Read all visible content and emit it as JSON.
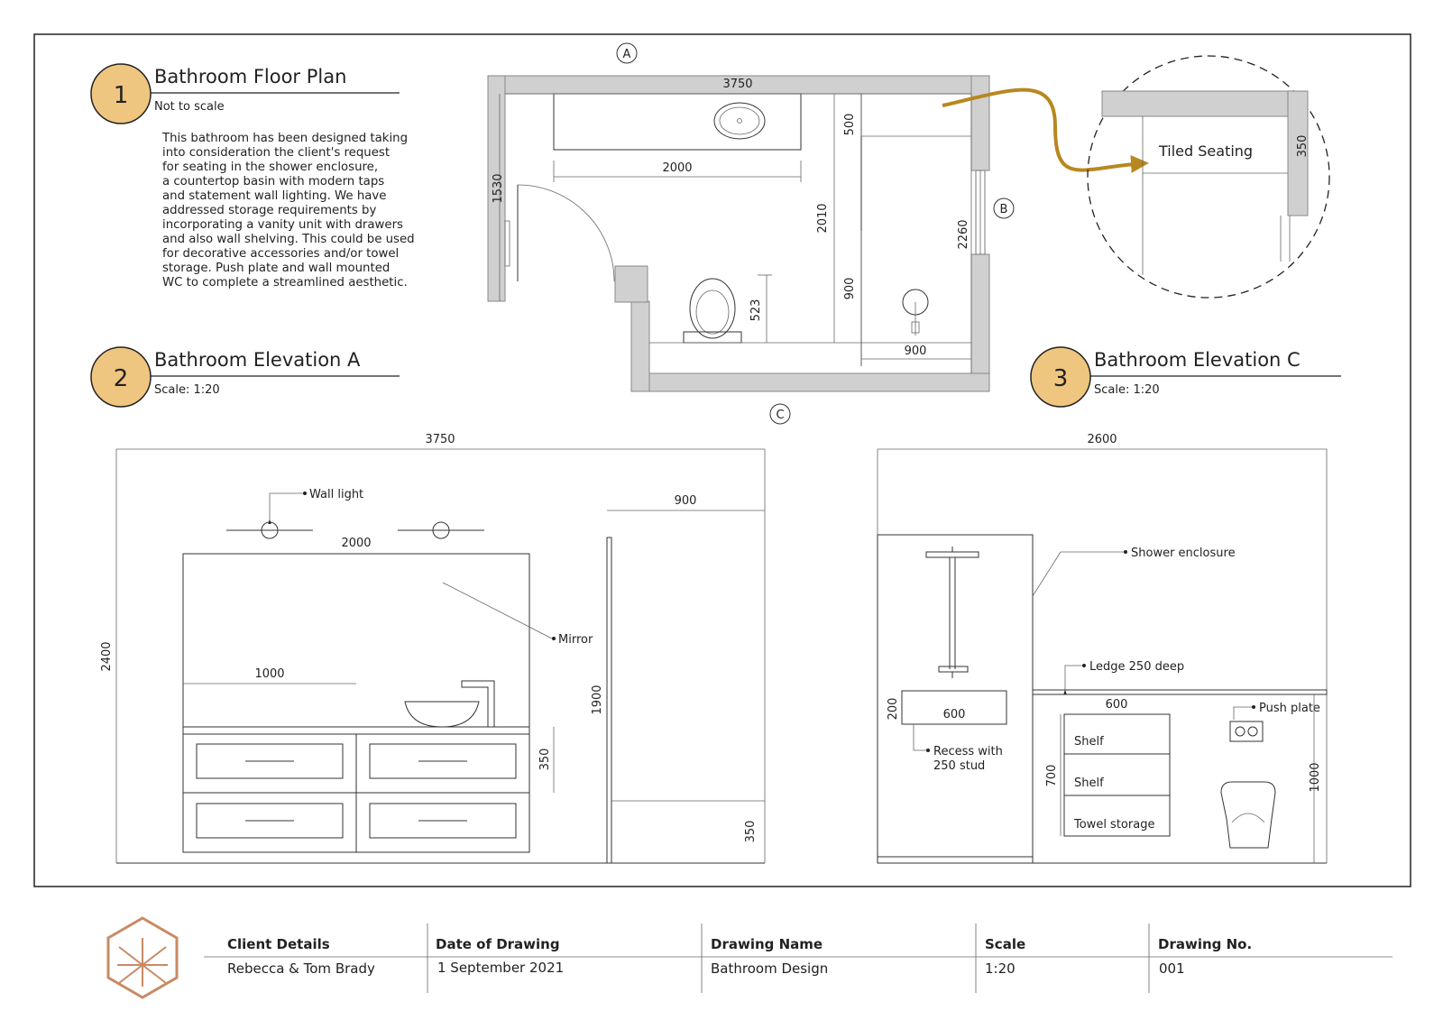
{
  "floor_plan": {
    "badge": "1",
    "title": "Bathroom Floor Plan",
    "scale_note": "Not to scale",
    "description": [
      "This bathroom has been designed taking",
      "into consideration the client's request",
      "for seating in the shower enclosure,",
      "a countertop basin with modern taps",
      "and statement wall lighting. We have",
      "addressed storage requirements by",
      "incorporating a vanity unit with drawers",
      "and also wall shelving. This could be used",
      "for decorative accessories and/or towel",
      "storage. Push plate and wall mounted",
      "WC to complete a streamlined aesthetic."
    ],
    "markers": {
      "a": "A",
      "b": "B",
      "c": "C"
    },
    "dims": {
      "width": "3750",
      "left_wall": "1530",
      "vanity": "2000",
      "ledge_depth": "500",
      "shower_upper": "2010",
      "wall_b": "2260",
      "shower_lower": "900",
      "wc": "523",
      "shower_width": "900"
    }
  },
  "detail": {
    "label": "Tiled Seating",
    "dim": "350"
  },
  "elev_a": {
    "badge": "2",
    "title": "Bathroom Elevation A",
    "scale": "Scale: 1:20",
    "dims": {
      "width": "3750",
      "height": "2400",
      "mirror": "2000",
      "shower": "900",
      "vanity": "1000",
      "drawer": "350",
      "screen": "1900",
      "base": "350"
    },
    "labels": {
      "wall_light": "Wall light",
      "mirror": "Mirror"
    }
  },
  "elev_c": {
    "badge": "3",
    "title": "Bathroom Elevation C",
    "scale": "Scale: 1:20",
    "dims": {
      "width": "2600",
      "recess_w": "600",
      "recess_h": "200",
      "shelf_w": "600",
      "shelf_h": "700",
      "right_h": "1000"
    },
    "labels": {
      "shower_enclosure": "Shower enclosure",
      "ledge": "Ledge 250 deep",
      "push_plate": "Push plate",
      "recess_line1": "Recess with",
      "recess_line2": "250 stud",
      "shelf1": "Shelf",
      "shelf2": "Shelf",
      "towel": "Towel storage"
    }
  },
  "title_block": {
    "client": {
      "label": "Client Details",
      "value": "Rebecca & Tom Brady"
    },
    "date": {
      "label": "Date of Drawing",
      "value": "1 September 2021"
    },
    "name": {
      "label": "Drawing Name",
      "value": "Bathroom Design"
    },
    "scale": {
      "label": "Scale",
      "value": "1:20"
    },
    "number": {
      "label": "Drawing No.",
      "value": "001"
    }
  },
  "colors": {
    "badge": "#efc680",
    "accent": "#b8871f",
    "logo": "#c98a63"
  }
}
